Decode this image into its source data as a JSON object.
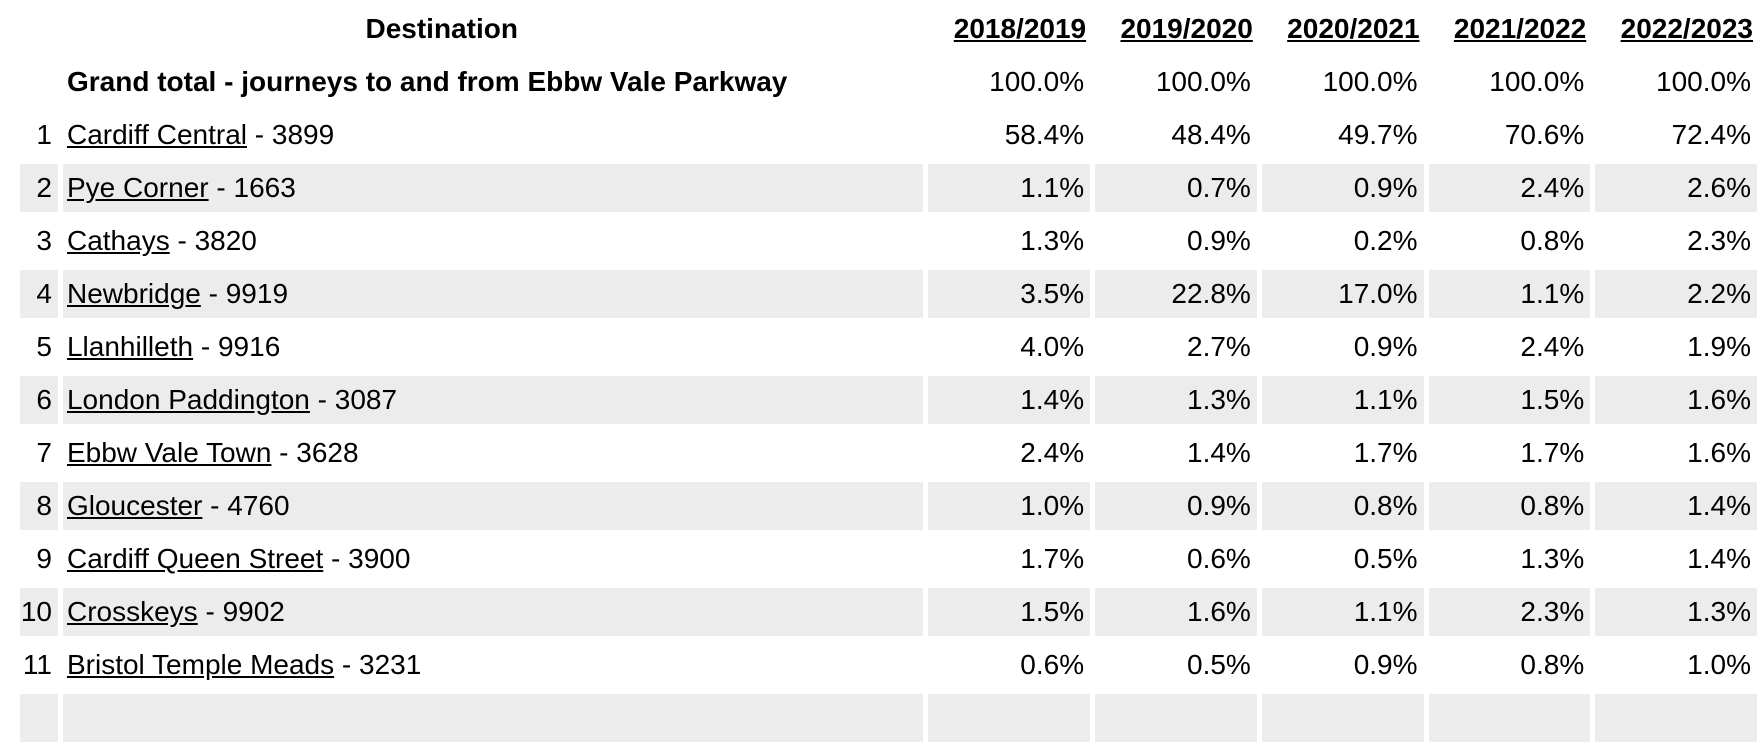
{
  "table": {
    "destination_header": "Destination",
    "year_headers": [
      "2018/2019",
      "2019/2020",
      "2020/2021",
      "2021/2022",
      "2022/2023"
    ],
    "grand_total": {
      "label": "Grand total - journeys to and from Ebbw Vale Parkway",
      "values": [
        "100.0%",
        "100.0%",
        "100.0%",
        "100.0%",
        "100.0%"
      ]
    },
    "rows": [
      {
        "rank": "1",
        "name": "Cardiff Central",
        "suffix": " - 3899",
        "values": [
          "58.4%",
          "48.4%",
          "49.7%",
          "70.6%",
          "72.4%"
        ]
      },
      {
        "rank": "2",
        "name": "Pye Corner",
        "suffix": " - 1663",
        "values": [
          "1.1%",
          "0.7%",
          "0.9%",
          "2.4%",
          "2.6%"
        ]
      },
      {
        "rank": "3",
        "name": "Cathays",
        "suffix": " - 3820",
        "values": [
          "1.3%",
          "0.9%",
          "0.2%",
          "0.8%",
          "2.3%"
        ]
      },
      {
        "rank": "4",
        "name": "Newbridge",
        "suffix": " - 9919",
        "values": [
          "3.5%",
          "22.8%",
          "17.0%",
          "1.1%",
          "2.2%"
        ]
      },
      {
        "rank": "5",
        "name": "Llanhilleth",
        "suffix": " - 9916",
        "values": [
          "4.0%",
          "2.7%",
          "0.9%",
          "2.4%",
          "1.9%"
        ]
      },
      {
        "rank": "6",
        "name": "London Paddington",
        "suffix": " - 3087",
        "values": [
          "1.4%",
          "1.3%",
          "1.1%",
          "1.5%",
          "1.6%"
        ]
      },
      {
        "rank": "7",
        "name": "Ebbw Vale Town",
        "suffix": " - 3628",
        "values": [
          "2.4%",
          "1.4%",
          "1.7%",
          "1.7%",
          "1.6%"
        ]
      },
      {
        "rank": "8",
        "name": "Gloucester",
        "suffix": " - 4760",
        "values": [
          "1.0%",
          "0.9%",
          "0.8%",
          "0.8%",
          "1.4%"
        ]
      },
      {
        "rank": "9",
        "name": "Cardiff Queen Street",
        "suffix": " - 3900",
        "values": [
          "1.7%",
          "0.6%",
          "0.5%",
          "1.3%",
          "1.4%"
        ]
      },
      {
        "rank": "10",
        "name": "Crosskeys",
        "suffix": " - 9902",
        "values": [
          "1.5%",
          "1.6%",
          "1.1%",
          "2.3%",
          "1.3%"
        ]
      },
      {
        "rank": "11",
        "name": "Bristol Temple Meads",
        "suffix": " - 3231",
        "values": [
          "0.6%",
          "0.5%",
          "0.9%",
          "0.8%",
          "1.0%"
        ]
      },
      {
        "rank": "",
        "name": "",
        "suffix": "",
        "values": [
          "",
          "",
          "",
          "",
          ""
        ]
      }
    ],
    "colors": {
      "row_shade": "#ececec",
      "text": "#000000"
    }
  }
}
